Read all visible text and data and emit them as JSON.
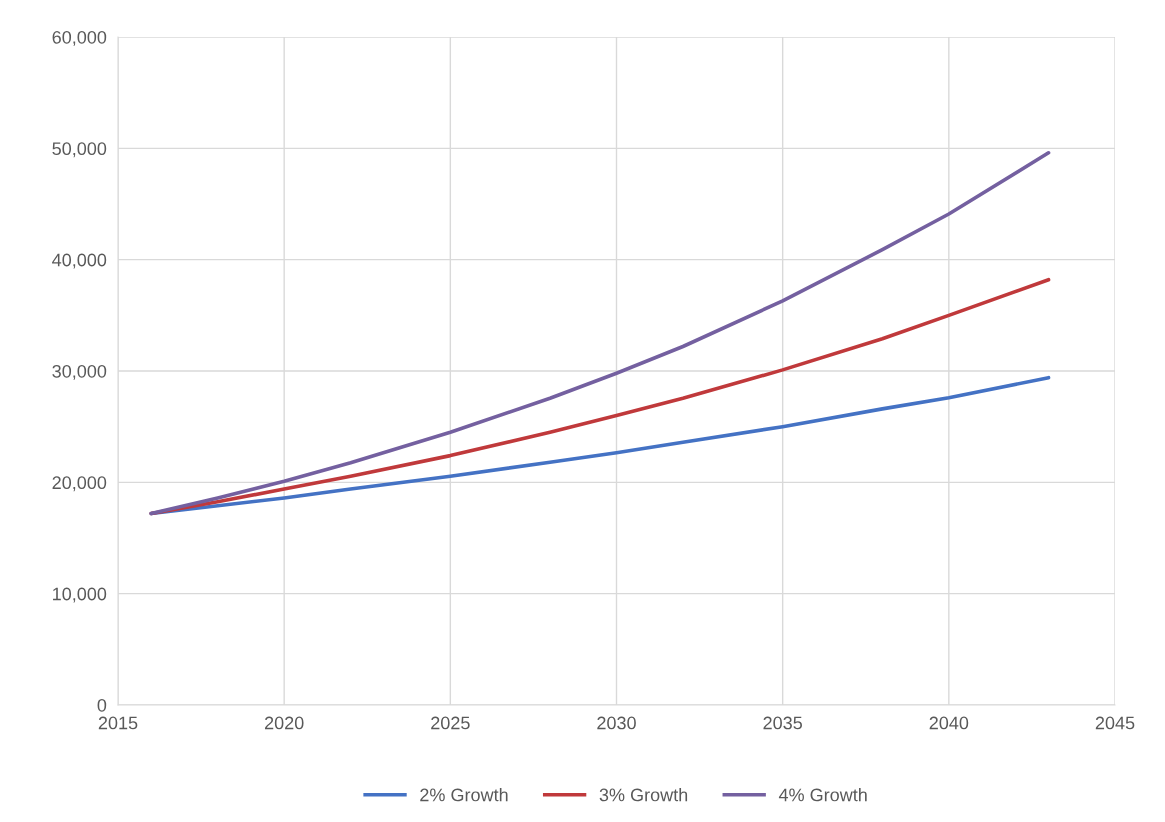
{
  "chart_data": {
    "type": "line",
    "x": [
      2016,
      2018,
      2020,
      2022,
      2025,
      2028,
      2030,
      2032,
      2035,
      2038,
      2040,
      2043
    ],
    "series": [
      {
        "name": "2% Growth",
        "color": "#4472c4",
        "values": [
          17200,
          17900,
          18600,
          19400,
          20550,
          21800,
          22650,
          23600,
          25000,
          26600,
          27600,
          29400
        ]
      },
      {
        "name": "3% Growth",
        "color": "#c0393b",
        "values": [
          17200,
          18250,
          19400,
          20550,
          22400,
          24500,
          26000,
          27550,
          30100,
          32900,
          35000,
          38200
        ]
      },
      {
        "name": "4% Growth",
        "color": "#7460a0",
        "values": [
          17200,
          18600,
          20100,
          21750,
          24500,
          27550,
          29800,
          32200,
          36300,
          40900,
          44100,
          49600
        ]
      }
    ],
    "xlim": [
      2015,
      2045
    ],
    "xticks": [
      2015,
      2020,
      2025,
      2030,
      2035,
      2040,
      2045
    ],
    "ylim": [
      0,
      60000
    ],
    "yticks": [
      {
        "value": 0,
        "label": "0"
      },
      {
        "value": 10000,
        "label": "10,000"
      },
      {
        "value": 20000,
        "label": "20,000"
      },
      {
        "value": 30000,
        "label": "30,000"
      },
      {
        "value": 40000,
        "label": "40,000"
      },
      {
        "value": 50000,
        "label": "50,000"
      },
      {
        "value": 60000,
        "label": "60,000"
      }
    ],
    "grid": true,
    "legend": "bottom",
    "marker": "none",
    "line_style": "solid"
  }
}
